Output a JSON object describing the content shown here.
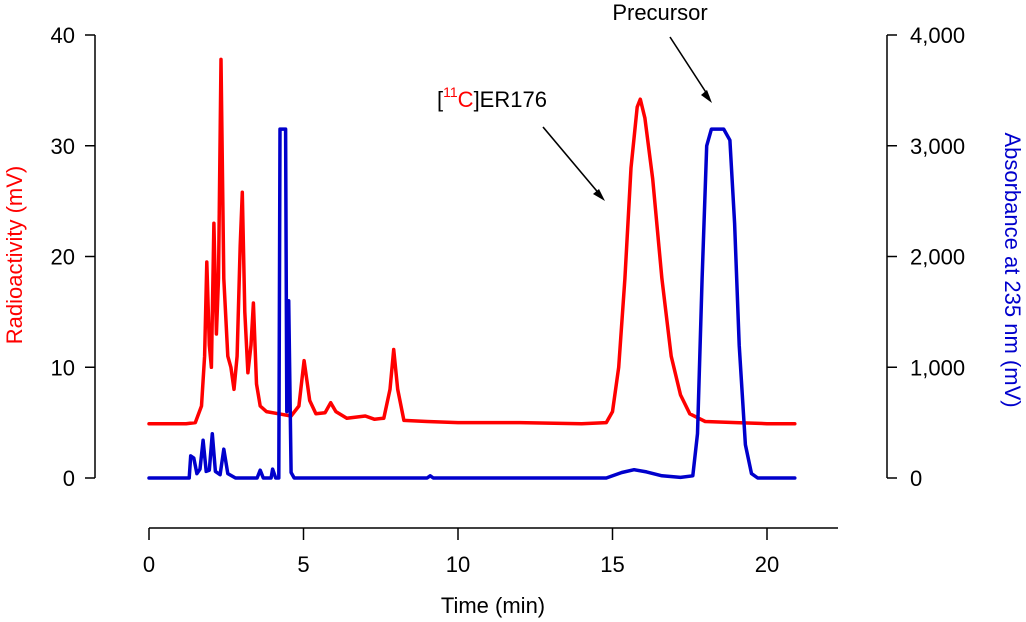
{
  "chart_data": {
    "type": "line",
    "title": "",
    "xlabel": "Time (min)",
    "ylabel_left": "Radioactivity (mV)",
    "ylabel_right": "Absorbance at 235 nm (mV)",
    "xlim": [
      0,
      22
    ],
    "xticks": [
      0,
      5,
      10,
      15,
      20
    ],
    "ylim_left": [
      0,
      40
    ],
    "yticks_left": [
      0,
      10,
      20,
      30,
      40
    ],
    "ylim_right": [
      0,
      4000
    ],
    "yticks_right": [
      0,
      1000,
      2000,
      3000,
      4000
    ],
    "ytick_labels_right": [
      "0",
      "1,000",
      "2,000",
      "3,000",
      "4,000"
    ],
    "grid": false,
    "colors": {
      "radioactivity": "#ff0000",
      "absorbance": "#0000cc",
      "axis": "#000000"
    },
    "series": [
      {
        "axis": "left",
        "color": "#ff0000",
        "points": [
          [
            0.0,
            4.9
          ],
          [
            1.2,
            4.9
          ],
          [
            1.5,
            5.0
          ],
          [
            1.7,
            6.5
          ],
          [
            1.8,
            11
          ],
          [
            1.87,
            19.5
          ],
          [
            1.95,
            12
          ],
          [
            2.02,
            10
          ],
          [
            2.1,
            23
          ],
          [
            2.18,
            13
          ],
          [
            2.25,
            18
          ],
          [
            2.33,
            37.8
          ],
          [
            2.42,
            18
          ],
          [
            2.55,
            11
          ],
          [
            2.65,
            10
          ],
          [
            2.75,
            8
          ],
          [
            2.85,
            11
          ],
          [
            2.95,
            21
          ],
          [
            3.02,
            25.8
          ],
          [
            3.1,
            15
          ],
          [
            3.2,
            9.5
          ],
          [
            3.3,
            12
          ],
          [
            3.38,
            15.8
          ],
          [
            3.48,
            8.5
          ],
          [
            3.6,
            6.5
          ],
          [
            3.8,
            6.0
          ],
          [
            4.2,
            5.8
          ],
          [
            4.6,
            5.6
          ],
          [
            4.85,
            6.5
          ],
          [
            5.02,
            10.6
          ],
          [
            5.2,
            7
          ],
          [
            5.4,
            5.8
          ],
          [
            5.7,
            5.9
          ],
          [
            5.88,
            6.8
          ],
          [
            6.05,
            6.0
          ],
          [
            6.4,
            5.4
          ],
          [
            7.0,
            5.6
          ],
          [
            7.3,
            5.3
          ],
          [
            7.6,
            5.4
          ],
          [
            7.8,
            8
          ],
          [
            7.92,
            11.6
          ],
          [
            8.05,
            8
          ],
          [
            8.25,
            5.2
          ],
          [
            9.0,
            5.1
          ],
          [
            10.0,
            5.0
          ],
          [
            12.0,
            5.0
          ],
          [
            14.0,
            4.9
          ],
          [
            14.8,
            5.0
          ],
          [
            15.0,
            6
          ],
          [
            15.2,
            10
          ],
          [
            15.4,
            18
          ],
          [
            15.6,
            28
          ],
          [
            15.8,
            33.5
          ],
          [
            15.9,
            34.2
          ],
          [
            16.05,
            32.5
          ],
          [
            16.3,
            27
          ],
          [
            16.6,
            18
          ],
          [
            16.9,
            11
          ],
          [
            17.2,
            7.5
          ],
          [
            17.5,
            5.8
          ],
          [
            18.0,
            5.1
          ],
          [
            19.0,
            5.0
          ],
          [
            20.0,
            4.9
          ],
          [
            20.9,
            4.9
          ]
        ]
      },
      {
        "axis": "right",
        "color": "#0000cc",
        "points": [
          [
            0.0,
            0
          ],
          [
            1.3,
            0
          ],
          [
            1.35,
            200
          ],
          [
            1.45,
            180
          ],
          [
            1.55,
            40
          ],
          [
            1.65,
            80
          ],
          [
            1.75,
            340
          ],
          [
            1.85,
            60
          ],
          [
            1.95,
            70
          ],
          [
            2.05,
            400
          ],
          [
            2.15,
            60
          ],
          [
            2.3,
            30
          ],
          [
            2.42,
            260
          ],
          [
            2.55,
            40
          ],
          [
            2.8,
            0
          ],
          [
            3.5,
            0
          ],
          [
            3.6,
            70
          ],
          [
            3.7,
            0
          ],
          [
            3.95,
            0
          ],
          [
            4.0,
            80
          ],
          [
            4.1,
            0
          ],
          [
            4.2,
            0
          ],
          [
            4.24,
            3150
          ],
          [
            4.42,
            3150
          ],
          [
            4.46,
            600
          ],
          [
            4.52,
            1600
          ],
          [
            4.6,
            50
          ],
          [
            4.7,
            0
          ],
          [
            9.0,
            0
          ],
          [
            9.1,
            20
          ],
          [
            9.2,
            0
          ],
          [
            14.8,
            0
          ],
          [
            15.3,
            50
          ],
          [
            15.7,
            75
          ],
          [
            16.1,
            55
          ],
          [
            16.6,
            20
          ],
          [
            17.2,
            5
          ],
          [
            17.6,
            20
          ],
          [
            17.75,
            400
          ],
          [
            17.9,
            1800
          ],
          [
            18.05,
            3000
          ],
          [
            18.2,
            3150
          ],
          [
            18.6,
            3150
          ],
          [
            18.8,
            3050
          ],
          [
            18.95,
            2300
          ],
          [
            19.1,
            1200
          ],
          [
            19.3,
            300
          ],
          [
            19.5,
            40
          ],
          [
            19.7,
            0
          ],
          [
            20.9,
            0
          ]
        ]
      }
    ],
    "annotations": [
      {
        "label_prefix": "[",
        "label_super": "11",
        "label_iso": "C",
        "label_suffix": "]ER176"
      },
      {
        "label": "Precursor"
      }
    ]
  }
}
